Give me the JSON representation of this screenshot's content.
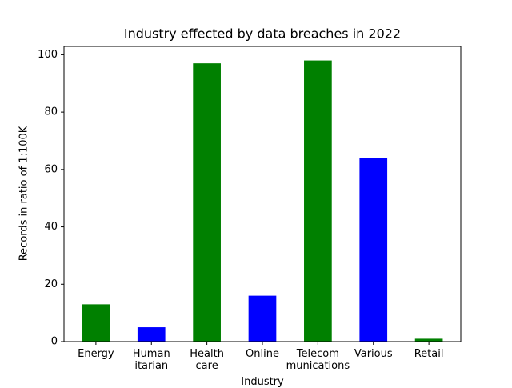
{
  "chart_data": {
    "type": "bar",
    "title": "Industry effected by data breaches in 2022",
    "x_label": "Industry",
    "y_label": "Records in ratio of 1:100K",
    "categories": [
      "Energy",
      "Human\nitarian",
      "Health\ncare",
      "Online",
      "Telecom\nmunications",
      "Various",
      "Retail"
    ],
    "values": [
      13,
      5,
      97,
      16,
      98,
      64,
      1
    ],
    "colors": [
      "#008000",
      "#0000ff",
      "#008000",
      "#0000ff",
      "#008000",
      "#0000ff",
      "#008000"
    ],
    "ylim": [
      0,
      102.9
    ],
    "yticks": [
      0,
      20,
      40,
      60,
      80,
      100
    ],
    "grid": false
  }
}
